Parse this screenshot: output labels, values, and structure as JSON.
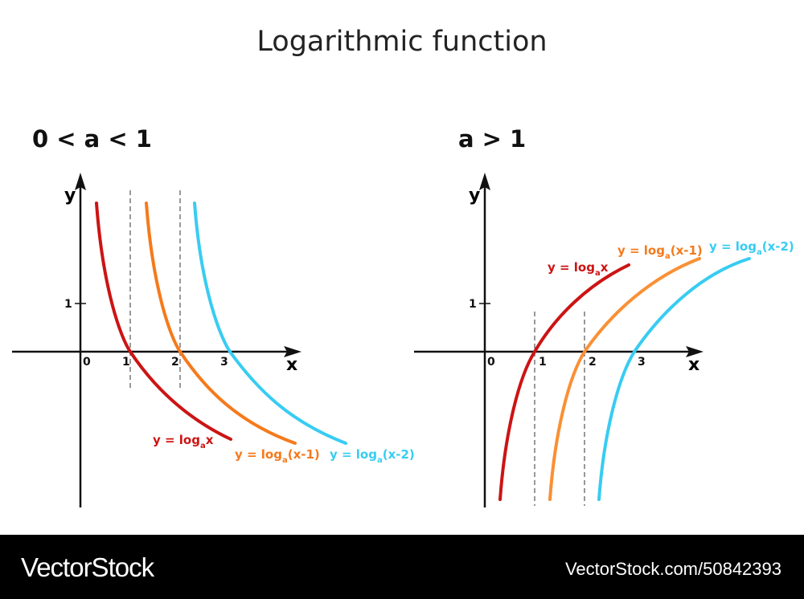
{
  "title": "Logarithmic function",
  "panels": [
    {
      "label": "0 < a < 1",
      "y_axis": "y",
      "x_axis": "x",
      "ticks": [
        "0",
        "1",
        "2",
        "3",
        "1"
      ],
      "curves": [
        {
          "prefix": "y = log",
          "sub": "a",
          "arg": "x"
        },
        {
          "prefix": "y = log",
          "sub": "a",
          "arg": "(x-1)"
        },
        {
          "prefix": "y = log",
          "sub": "a",
          "arg": "(x-2)"
        }
      ]
    },
    {
      "label": "a > 1",
      "y_axis": "y",
      "x_axis": "x",
      "ticks": [
        "0",
        "1",
        "2",
        "3",
        "1"
      ],
      "curves": [
        {
          "prefix": "y = log",
          "sub": "a",
          "arg": "x"
        },
        {
          "prefix": "y = log",
          "sub": "a",
          "arg": "(x-1)"
        },
        {
          "prefix": "y = log",
          "sub": "a",
          "arg": "(x-2)"
        }
      ]
    }
  ],
  "footer": {
    "brand": "VectorStock",
    "id": "VectorStock.com/50842393"
  }
}
